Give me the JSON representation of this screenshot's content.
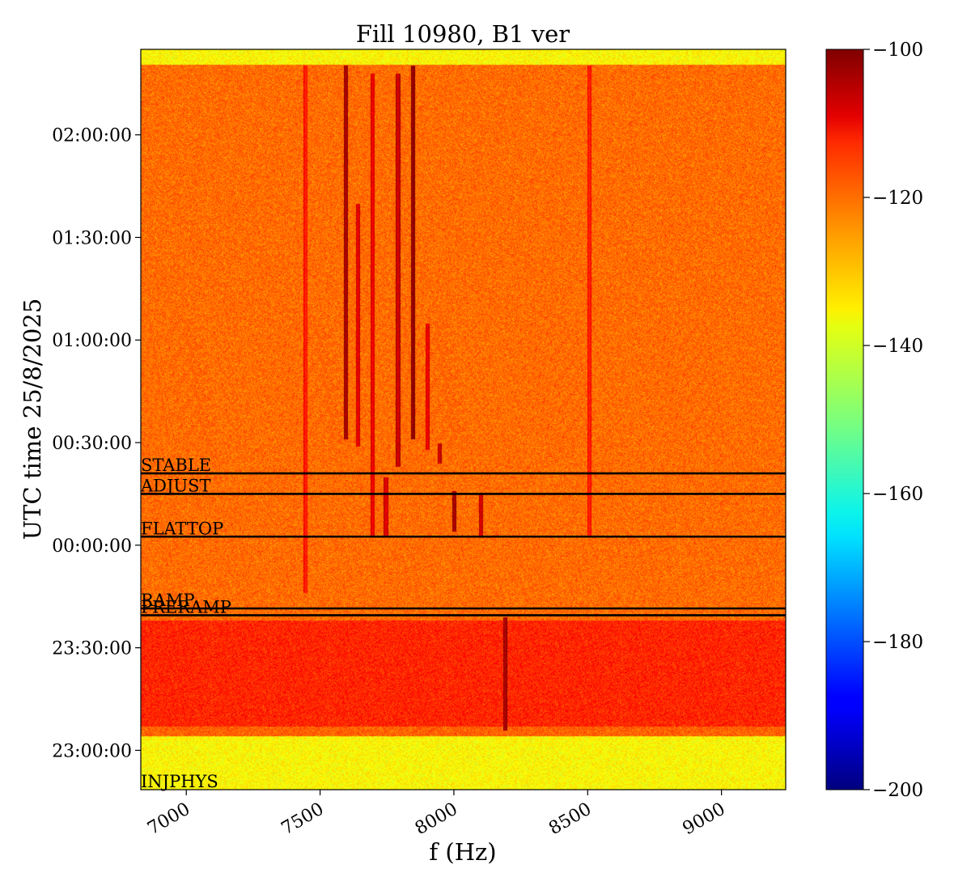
{
  "chart_data": {
    "type": "heatmap",
    "title": "Fill 10980, B1 ver",
    "xlabel": "f (Hz)",
    "ylabel": "UTC time 25/8/2025",
    "xlim": [
      6830,
      9240
    ],
    "ylim": [
      "22:48:30",
      "02:25:00"
    ],
    "x_ticks": [
      7000,
      7500,
      8000,
      8500,
      9000
    ],
    "x_tick_labels": [
      "7000",
      "7500",
      "8000",
      "8500",
      "9000"
    ],
    "y_ticks": [
      "23:00:00",
      "23:30:00",
      "00:00:00",
      "00:30:00",
      "01:00:00",
      "01:30:00",
      "02:00:00"
    ],
    "y_tick_labels": [
      "23:00:00",
      "23:30:00",
      "00:00:00",
      "00:30:00",
      "01:00:00",
      "01:30:00",
      "02:00:00"
    ],
    "colormap": "jet",
    "colorbar": {
      "range": [
        -200,
        -100
      ],
      "ticks": [
        -100,
        -120,
        -140,
        -160,
        -180,
        -200
      ],
      "tick_labels": [
        "−100",
        "−120",
        "−140",
        "−160",
        "−180",
        "−200"
      ]
    },
    "phase_markers": [
      {
        "label": "INJPHYS",
        "time": "22:48:30"
      },
      {
        "label": "PRERAMP",
        "time": "23:39:30"
      },
      {
        "label": "RAMP",
        "time": "23:41:30"
      },
      {
        "label": "FLATTOP",
        "time": "00:02:30"
      },
      {
        "label": "ADJUST",
        "time": "00:15:00"
      },
      {
        "label": "STABLE",
        "time": "00:21:00"
      }
    ],
    "background_levels": [
      {
        "from": "22:48:30",
        "to": "23:04:00",
        "level": -137
      },
      {
        "from": "23:04:00",
        "to": "23:07:00",
        "level": -122
      },
      {
        "from": "23:07:00",
        "to": "23:38:00",
        "level": -116
      },
      {
        "from": "23:38:00",
        "to": "02:20:30",
        "level": -123
      },
      {
        "from": "02:20:30",
        "to": "02:25:00",
        "level": -137
      }
    ],
    "spectral_lines": [
      {
        "f": 7445,
        "from": "23:46:00",
        "to": "02:20:30",
        "level": -117
      },
      {
        "f": 7595,
        "from": "00:31:00",
        "to": "02:20:30",
        "level": -106
      },
      {
        "f": 7640,
        "from": "00:29:00",
        "to": "01:40:00",
        "level": -112
      },
      {
        "f": 7695,
        "from": "00:03:00",
        "to": "02:18:00",
        "level": -113
      },
      {
        "f": 7745,
        "from": "00:03:00",
        "to": "00:20:00",
        "level": -112
      },
      {
        "f": 7790,
        "from": "00:23:00",
        "to": "02:18:00",
        "level": -110
      },
      {
        "f": 7845,
        "from": "00:31:00",
        "to": "02:20:30",
        "level": -104
      },
      {
        "f": 7900,
        "from": "00:28:00",
        "to": "01:05:00",
        "level": -113
      },
      {
        "f": 7945,
        "from": "00:24:00",
        "to": "00:30:00",
        "level": -110
      },
      {
        "f": 8000,
        "from": "00:04:00",
        "to": "00:16:00",
        "level": -106
      },
      {
        "f": 8100,
        "from": "00:03:00",
        "to": "00:15:00",
        "level": -110
      },
      {
        "f": 8190,
        "from": "23:06:00",
        "to": "23:39:00",
        "level": -106
      },
      {
        "f": 8505,
        "from": "00:03:00",
        "to": "02:20:30",
        "level": -117
      }
    ]
  }
}
